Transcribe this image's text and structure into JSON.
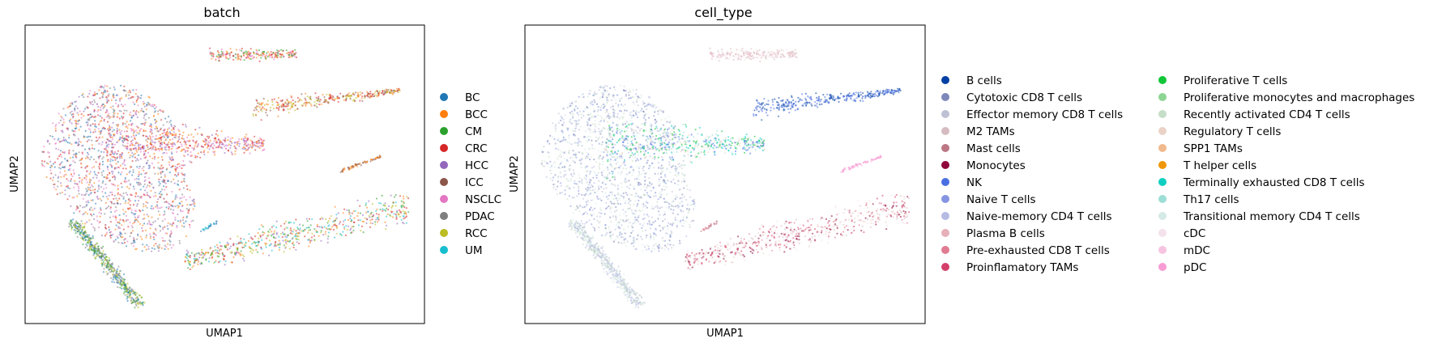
{
  "chart_data": [
    {
      "type": "scatter",
      "title": "batch",
      "xlabel": "UMAP1",
      "ylabel": "UMAP2",
      "grid": false,
      "ticks": false,
      "legend_placement": "right",
      "legend_columns": 1,
      "series": [
        {
          "name": "BC",
          "color": "#1f77b4"
        },
        {
          "name": "BCC",
          "color": "#ff7f0e"
        },
        {
          "name": "CM",
          "color": "#2ca02c"
        },
        {
          "name": "CRC",
          "color": "#d62728"
        },
        {
          "name": "HCC",
          "color": "#9467bd"
        },
        {
          "name": "ICC",
          "color": "#8c564b"
        },
        {
          "name": "NSCLC",
          "color": "#e377c2"
        },
        {
          "name": "PDAC",
          "color": "#7f7f7f"
        },
        {
          "name": "RCC",
          "color": "#bcbd22"
        },
        {
          "name": "UM",
          "color": "#17becf"
        }
      ],
      "clusters": [
        {
          "label": "main-body",
          "colors": [
            "#ff7f0e",
            "#e377c2",
            "#9467bd",
            "#d62728",
            "#1f77b4",
            "#7f7f7f"
          ]
        },
        {
          "label": "main-body-right",
          "colors": [
            "#ff7f0e",
            "#d62728",
            "#e377c2",
            "#9467bd"
          ]
        },
        {
          "label": "tail",
          "colors": [
            "#2ca02c",
            "#1f77b4",
            "#bcbd22",
            "#7f7f7f"
          ]
        },
        {
          "label": "top-small",
          "colors": [
            "#ff7f0e",
            "#d62728",
            "#2ca02c",
            "#e377c2"
          ]
        },
        {
          "label": "mid-right",
          "colors": [
            "#ff7f0e",
            "#bcbd22",
            "#d62728",
            "#8c564b"
          ]
        },
        {
          "label": "small-right",
          "colors": [
            "#ff7f0e",
            "#8c564b"
          ]
        },
        {
          "label": "bottom-right",
          "colors": [
            "#bcbd22",
            "#2ca02c",
            "#ff7f0e",
            "#d62728",
            "#9467bd",
            "#17becf"
          ]
        },
        {
          "label": "tiny",
          "colors": [
            "#1f77b4",
            "#17becf"
          ]
        }
      ]
    },
    {
      "type": "scatter",
      "title": "cell_type",
      "xlabel": "UMAP1",
      "ylabel": "UMAP2",
      "grid": false,
      "ticks": false,
      "legend_placement": "right",
      "legend_columns": 2,
      "series": [
        {
          "name": "B cells",
          "color": "#023fa5"
        },
        {
          "name": "Cytotoxic CD8 T cells",
          "color": "#7d87b9"
        },
        {
          "name": "Effector memory CD8 T cells",
          "color": "#bec1d4"
        },
        {
          "name": "M2 TAMs",
          "color": "#d6bcc0"
        },
        {
          "name": "Mast cells",
          "color": "#bb7784"
        },
        {
          "name": "Monocytes",
          "color": "#8e063b"
        },
        {
          "name": "NK",
          "color": "#4a6fe3"
        },
        {
          "name": "Naive T cells",
          "color": "#8595e1"
        },
        {
          "name": "Naive-memory CD4 T cells",
          "color": "#b5bbe3"
        },
        {
          "name": "Plasma B cells",
          "color": "#e6afb9"
        },
        {
          "name": "Pre-exhausted CD8 T cells",
          "color": "#e07b91"
        },
        {
          "name": "Proinflamatory TAMs",
          "color": "#d33f6a"
        },
        {
          "name": "Proliferative T cells",
          "color": "#11c638"
        },
        {
          "name": "Proliferative monocytes and macrophages",
          "color": "#8dd593"
        },
        {
          "name": "Recently activated CD4 T cells",
          "color": "#c6dec7"
        },
        {
          "name": "Regulatory T cells",
          "color": "#ead3c6"
        },
        {
          "name": "SPP1 TAMs",
          "color": "#f0b98d"
        },
        {
          "name": "T helper cells",
          "color": "#ef9708"
        },
        {
          "name": "Terminally exhausted CD8 T cells",
          "color": "#0fcfc0"
        },
        {
          "name": "Th17 cells",
          "color": "#9cded6"
        },
        {
          "name": "Transitional memory CD4 T cells",
          "color": "#d5eae7"
        },
        {
          "name": "cDC",
          "color": "#f3e1eb"
        },
        {
          "name": "mDC",
          "color": "#f6c4e1"
        },
        {
          "name": "pDC",
          "color": "#f79cd4"
        }
      ],
      "clusters": [
        {
          "label": "main-body",
          "colors": [
            "#b5bbe3",
            "#bec1d4",
            "#8595e1",
            "#c6dec7",
            "#d5eae7",
            "#7d87b9"
          ]
        },
        {
          "label": "main-body-right",
          "colors": [
            "#0fcfc0",
            "#4a6fe3",
            "#9cded6",
            "#11c638",
            "#ead3c6"
          ]
        },
        {
          "label": "tail",
          "colors": [
            "#c6dec7",
            "#d5eae7",
            "#bec1d4",
            "#b5bbe3"
          ]
        },
        {
          "label": "top-small",
          "colors": [
            "#e6afb9",
            "#f3e1eb",
            "#d6bcc0"
          ]
        },
        {
          "label": "mid-right",
          "colors": [
            "#023fa5",
            "#4a6fe3"
          ]
        },
        {
          "label": "small-right",
          "colors": [
            "#f79cd4"
          ]
        },
        {
          "label": "bottom-right",
          "colors": [
            "#8e063b",
            "#d33f6a",
            "#ead3c6",
            "#d6bcc0",
            "#f3e1eb",
            "#e07b91"
          ]
        },
        {
          "label": "tiny",
          "colors": [
            "#bb7784",
            "#e07b91"
          ]
        }
      ]
    }
  ]
}
